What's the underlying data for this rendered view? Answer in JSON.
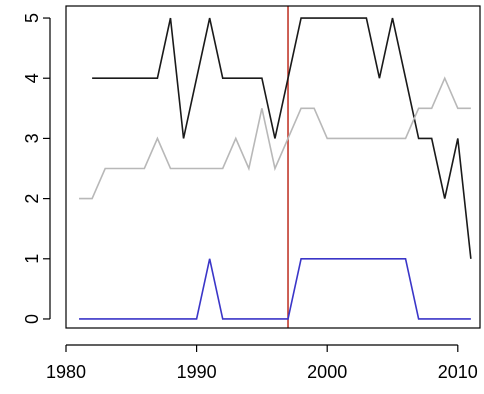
{
  "chart_data": {
    "type": "line",
    "title": "",
    "xlabel": "",
    "ylabel": "",
    "xlim": [
      1980,
      2011.7
    ],
    "ylim": [
      -0.15,
      5.2
    ],
    "x_ticks": [
      1980,
      1990,
      2000,
      2010
    ],
    "x_tick_labels": [
      "1980",
      "1990",
      "2000",
      "2010"
    ],
    "y_ticks": [
      0,
      1,
      2,
      3,
      4,
      5
    ],
    "y_tick_labels": [
      "0",
      "1",
      "2",
      "3",
      "4",
      "5"
    ],
    "grid": false,
    "legend": "none",
    "vline": {
      "x": 1997,
      "color": "#c0392b"
    },
    "series": [
      {
        "color": "#1a1a1a",
        "x": [
          1982,
          1983,
          1984,
          1985,
          1986,
          1987,
          1988,
          1989,
          1990,
          1991,
          1992,
          1993,
          1994,
          1995,
          1996,
          1997,
          1998,
          1999,
          2000,
          2001,
          2002,
          2003,
          2004,
          2005,
          2006,
          2007,
          2008,
          2009,
          2010,
          2011
        ],
        "y": [
          4,
          4,
          4,
          4,
          4,
          4,
          5,
          3,
          4,
          5,
          4,
          4,
          4,
          4,
          3,
          4,
          5,
          5,
          5,
          5,
          5,
          5,
          4,
          5,
          4,
          3,
          3,
          2,
          3,
          1
        ]
      },
      {
        "color": "#b8b8b8",
        "x": [
          1981,
          1982,
          1983,
          1984,
          1985,
          1986,
          1987,
          1988,
          1989,
          1990,
          1991,
          1992,
          1993,
          1994,
          1995,
          1996,
          1997,
          1998,
          1999,
          2000,
          2001,
          2002,
          2003,
          2004,
          2005,
          2006,
          2007,
          2008,
          2009,
          2010,
          2011
        ],
        "y": [
          2,
          2,
          2.5,
          2.5,
          2.5,
          2.5,
          3,
          2.5,
          2.5,
          2.5,
          2.5,
          2.5,
          3,
          2.5,
          3.5,
          2.5,
          3,
          3.5,
          3.5,
          3,
          3,
          3,
          3,
          3,
          3,
          3,
          3.5,
          3.5,
          4,
          3.5,
          3.5
        ]
      },
      {
        "color": "#3b36c8",
        "x": [
          1981,
          1982,
          1983,
          1984,
          1985,
          1986,
          1987,
          1988,
          1989,
          1990,
          1991,
          1992,
          1993,
          1994,
          1995,
          1996,
          1997,
          1998,
          1999,
          2000,
          2001,
          2002,
          2003,
          2004,
          2005,
          2006,
          2007,
          2008,
          2009,
          2010,
          2011
        ],
        "y": [
          0,
          0,
          0,
          0,
          0,
          0,
          0,
          0,
          0,
          0,
          1,
          0,
          0,
          0,
          0,
          0,
          0,
          1,
          1,
          1,
          1,
          1,
          1,
          1,
          1,
          1,
          0,
          0,
          0,
          0,
          0
        ]
      }
    ]
  }
}
